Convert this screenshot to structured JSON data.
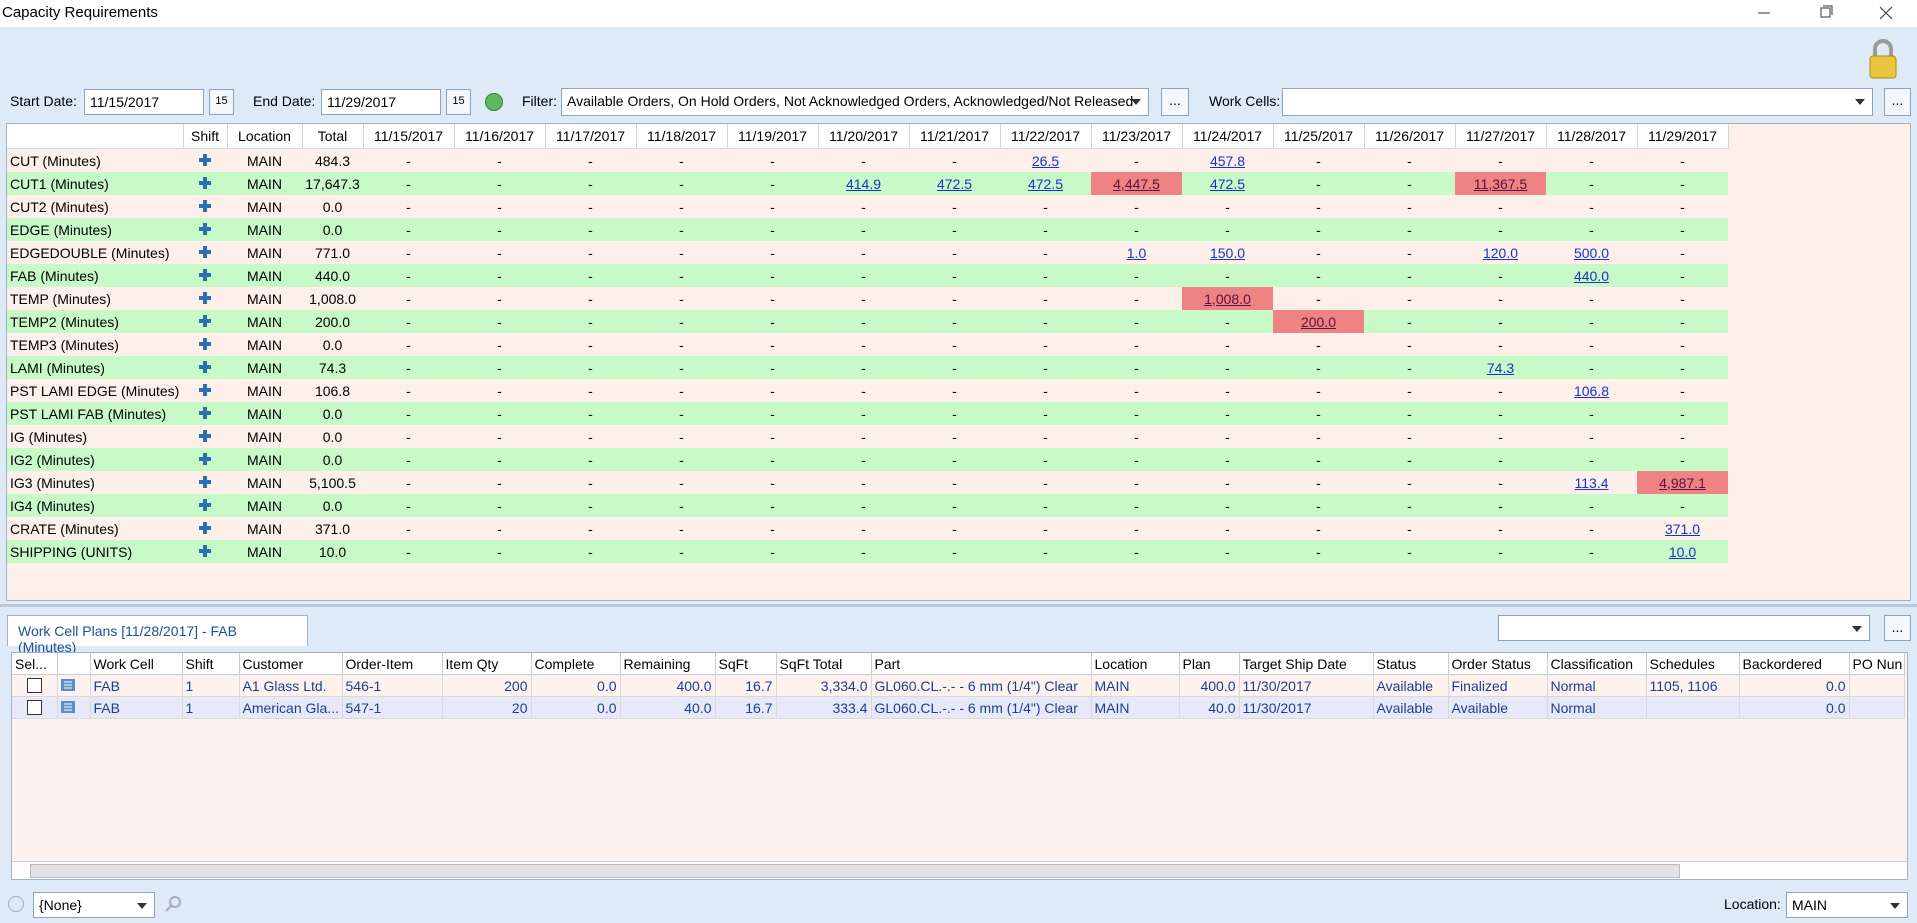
{
  "window": {
    "title": "Capacity Requirements"
  },
  "toolbar": {
    "start_date_label": "Start Date:",
    "start_date": "11/15/2017",
    "calendar_button": "15",
    "end_date_label": "End Date:",
    "end_date": "11/29/2017",
    "filter_label": "Filter:",
    "filter": "Available Orders, On Hold Orders, Not Acknowledged Orders, Acknowledged/Not Released",
    "more_button": "...",
    "work_cells_label": "Work Cells:"
  },
  "capacity": {
    "columns": [
      "Shift",
      "Location",
      "Total",
      "11/15/2017",
      "11/16/2017",
      "11/17/2017",
      "11/18/2017",
      "11/19/2017",
      "11/20/2017",
      "11/21/2017",
      "11/22/2017",
      "11/23/2017",
      "11/24/2017",
      "11/25/2017",
      "11/26/2017",
      "11/27/2017",
      "11/28/2017",
      "11/29/2017"
    ],
    "rows": [
      {
        "name": "CUT (Minutes)",
        "location": "MAIN",
        "total": "484.3",
        "days": [
          "-",
          "-",
          "-",
          "-",
          "-",
          "-",
          "-",
          "26.5",
          "-",
          "457.8",
          "-",
          "-",
          "-",
          "-",
          "-"
        ]
      },
      {
        "name": "CUT1 (Minutes)",
        "location": "MAIN",
        "total": "17,647.3",
        "days": [
          "-",
          "-",
          "-",
          "-",
          "-",
          "414.9",
          "472.5",
          "472.5",
          {
            "text": "4,447.5",
            "state": "over"
          },
          "472.5",
          "-",
          "-",
          {
            "text": "11,367.5",
            "state": "over"
          },
          "-",
          "-"
        ]
      },
      {
        "name": "CUT2 (Minutes)",
        "location": "MAIN",
        "total": "0.0",
        "days": [
          "-",
          "-",
          "-",
          "-",
          "-",
          "-",
          "-",
          "-",
          "-",
          "-",
          "-",
          "-",
          "-",
          "-",
          "-"
        ]
      },
      {
        "name": "EDGE (Minutes)",
        "location": "MAIN",
        "total": "0.0",
        "days": [
          "-",
          "-",
          "-",
          "-",
          "-",
          "-",
          "-",
          "-",
          "-",
          "-",
          "-",
          "-",
          "-",
          "-",
          "-"
        ]
      },
      {
        "name": "EDGEDOUBLE (Minutes)",
        "location": "MAIN",
        "total": "771.0",
        "days": [
          "-",
          "-",
          "-",
          "-",
          "-",
          "-",
          "-",
          "-",
          "1.0",
          "150.0",
          "-",
          "-",
          "120.0",
          "500.0",
          "-"
        ]
      },
      {
        "name": "FAB (Minutes)",
        "location": "MAIN",
        "total": "440.0",
        "days": [
          "-",
          "-",
          "-",
          "-",
          "-",
          "-",
          "-",
          "-",
          "-",
          "-",
          "-",
          "-",
          "-",
          {
            "text": "440.0",
            "state": "selected"
          },
          "-"
        ]
      },
      {
        "name": "TEMP (Minutes)",
        "location": "MAIN",
        "total": "1,008.0",
        "days": [
          "-",
          "-",
          "-",
          "-",
          "-",
          "-",
          "-",
          "-",
          "-",
          {
            "text": "1,008.0",
            "state": "over"
          },
          "-",
          "-",
          "-",
          "-",
          "-"
        ]
      },
      {
        "name": "TEMP2 (Minutes)",
        "location": "MAIN",
        "total": "200.0",
        "days": [
          "-",
          "-",
          "-",
          "-",
          "-",
          "-",
          "-",
          "-",
          "-",
          "-",
          {
            "text": "200.0",
            "state": "over"
          },
          "-",
          "-",
          "-",
          "-"
        ]
      },
      {
        "name": "TEMP3 (Minutes)",
        "location": "MAIN",
        "total": "0.0",
        "days": [
          "-",
          "-",
          "-",
          "-",
          "-",
          "-",
          "-",
          "-",
          "-",
          "-",
          "-",
          "-",
          "-",
          "-",
          "-"
        ]
      },
      {
        "name": "LAMI (Minutes)",
        "location": "MAIN",
        "total": "74.3",
        "days": [
          "-",
          "-",
          "-",
          "-",
          "-",
          "-",
          "-",
          "-",
          "-",
          "-",
          "-",
          "-",
          "74.3",
          "-",
          "-"
        ]
      },
      {
        "name": "PST LAMI EDGE (Minutes)",
        "location": "MAIN",
        "total": "106.8",
        "days": [
          "-",
          "-",
          "-",
          "-",
          "-",
          "-",
          "-",
          "-",
          "-",
          "-",
          "-",
          "-",
          "-",
          "106.8",
          "-"
        ]
      },
      {
        "name": "PST LAMI FAB (Minutes)",
        "location": "MAIN",
        "total": "0.0",
        "days": [
          "-",
          "-",
          "-",
          "-",
          "-",
          "-",
          "-",
          "-",
          "-",
          "-",
          "-",
          "-",
          "-",
          "-",
          "-"
        ]
      },
      {
        "name": "IG (Minutes)",
        "location": "MAIN",
        "total": "0.0",
        "days": [
          "-",
          "-",
          "-",
          "-",
          "-",
          "-",
          "-",
          "-",
          "-",
          "-",
          "-",
          "-",
          "-",
          "-",
          "-"
        ]
      },
      {
        "name": "IG2 (Minutes)",
        "location": "MAIN",
        "total": "0.0",
        "days": [
          "-",
          "-",
          "-",
          "-",
          "-",
          "-",
          "-",
          "-",
          "-",
          "-",
          "-",
          "-",
          "-",
          "-",
          "-"
        ]
      },
      {
        "name": "IG3 (Minutes)",
        "location": "MAIN",
        "total": "5,100.5",
        "days": [
          "-",
          "-",
          "-",
          "-",
          "-",
          "-",
          "-",
          "-",
          "-",
          "-",
          "-",
          "-",
          "-",
          "113.4",
          {
            "text": "4,987.1",
            "state": "over"
          }
        ]
      },
      {
        "name": "IG4 (Minutes)",
        "location": "MAIN",
        "total": "0.0",
        "days": [
          "-",
          "-",
          "-",
          "-",
          "-",
          "-",
          "-",
          "-",
          "-",
          "-",
          "-",
          "-",
          "-",
          "-",
          "-"
        ]
      },
      {
        "name": "CRATE (Minutes)",
        "location": "MAIN",
        "total": "371.0",
        "days": [
          "-",
          "-",
          "-",
          "-",
          "-",
          "-",
          "-",
          "-",
          "-",
          "-",
          "-",
          "-",
          "-",
          "-",
          "371.0"
        ]
      },
      {
        "name": "SHIPPING (UNITS)",
        "location": "MAIN",
        "total": "10.0",
        "days": [
          "-",
          "-",
          "-",
          "-",
          "-",
          "-",
          "-",
          "-",
          "-",
          "-",
          "-",
          "-",
          "-",
          "-",
          "10.0"
        ]
      }
    ]
  },
  "plans": {
    "tab": "Work Cell Plans [11/28/2017] - FAB (Minutes)",
    "more_button": "...",
    "columns": [
      "Sel...",
      "Work Cell",
      "Shift",
      "Customer",
      "Order-Item",
      "Item Qty",
      "Complete",
      "Remaining",
      "SqFt",
      "SqFt Total",
      "Part",
      "Location",
      "Plan",
      "Target Ship Date",
      "Status",
      "Order Status",
      "Classification",
      "Schedules",
      "Backordered",
      "PO Nun"
    ],
    "rows": [
      [
        "FAB",
        "1",
        "A1 Glass Ltd.",
        "546-1",
        "200",
        "0.0",
        "400.0",
        "16.7",
        "3,334.0",
        "GL060.CL.-.- - 6 mm (1/4\") Clear",
        "MAIN",
        "400.0",
        "11/30/2017",
        "Available",
        "Finalized",
        "Normal",
        "1105, 1106",
        "0.0"
      ],
      [
        "FAB",
        "1",
        "American Gla...",
        "547-1",
        "20",
        "0.0",
        "40.0",
        "16.7",
        "333.4",
        "GL060.CL.-.- - 6 mm (1/4\") Clear",
        "MAIN",
        "40.0",
        "11/30/2017",
        "Available",
        "Available",
        "Normal",
        null,
        "0.0"
      ]
    ]
  },
  "footer": {
    "view": "{None}",
    "location_label": "Location:",
    "location": "MAIN"
  }
}
